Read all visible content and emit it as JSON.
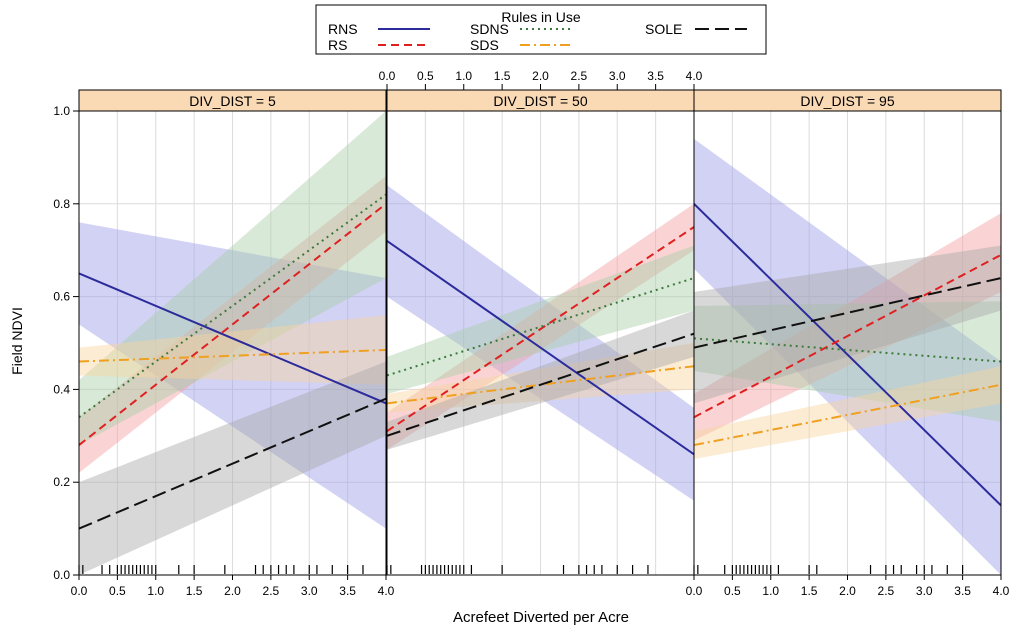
{
  "legend": {
    "title": "Rules in Use",
    "position": "top-center"
  },
  "chart_data": {
    "type": "line",
    "layout": "three panels side by side, shared y-axis, shaded confidence bands",
    "xlabel": "Acrefeet Diverted per Acre",
    "ylabel": "Field NDVI",
    "xlim": [
      0,
      4
    ],
    "ylim": [
      0,
      1
    ],
    "x_ticks": [
      "0.0",
      "0.5",
      "1.0",
      "1.5",
      "2.0",
      "2.5",
      "3.0",
      "3.5",
      "4.0"
    ],
    "y_ticks": [
      "0.0",
      "0.2",
      "0.4",
      "0.6",
      "0.8",
      "1.0"
    ],
    "grid": true,
    "strip_color": "#fad9b5",
    "series_styles": [
      {
        "name": "RNS",
        "color": "#2b2b9c",
        "dash": "solid",
        "band": "#9c9ce8"
      },
      {
        "name": "RS",
        "color": "#e02020",
        "dash": "dashed",
        "band": "#f4a0a0"
      },
      {
        "name": "SDNS",
        "color": "#3c7a3c",
        "dash": "dotted",
        "band": "#a8cfa8"
      },
      {
        "name": "SDS",
        "color": "#f0a020",
        "dash": "dashdot",
        "band": "#f8d4a0"
      },
      {
        "name": "SOLE",
        "color": "#111111",
        "dash": "longdash",
        "band": "#a8a8a8"
      }
    ],
    "panels": [
      {
        "label": "DIV_DIST = 5",
        "series": [
          {
            "name": "RNS",
            "x": [
              0,
              4
            ],
            "y": [
              0.65,
              0.37
            ],
            "lower": [
              0.54,
              0.1
            ],
            "upper": [
              0.76,
              0.64
            ]
          },
          {
            "name": "RS",
            "x": [
              0,
              4
            ],
            "y": [
              0.28,
              0.8
            ],
            "lower": [
              0.22,
              0.74
            ],
            "upper": [
              0.34,
              0.86
            ]
          },
          {
            "name": "SDNS",
            "x": [
              0,
              4
            ],
            "y": [
              0.34,
              0.82
            ],
            "lower": [
              0.28,
              0.64
            ],
            "upper": [
              0.42,
              1.0
            ]
          },
          {
            "name": "SDS",
            "x": [
              0,
              4
            ],
            "y": [
              0.46,
              0.485
            ],
            "lower": [
              0.43,
              0.41
            ],
            "upper": [
              0.49,
              0.56
            ]
          },
          {
            "name": "SOLE",
            "x": [
              0,
              4
            ],
            "y": [
              0.1,
              0.38
            ],
            "lower": [
              0.0,
              0.3
            ],
            "upper": [
              0.2,
              0.46
            ]
          }
        ],
        "rug": [
          0.0,
          0.05,
          0.3,
          0.4,
          0.5,
          0.55,
          0.6,
          0.65,
          0.7,
          0.75,
          0.8,
          0.85,
          0.9,
          0.95,
          1.0,
          1.3,
          1.5,
          1.9,
          2.3,
          2.4,
          2.5,
          2.6,
          2.7,
          2.8,
          3.0,
          3.1,
          3.3,
          3.5,
          3.7
        ]
      },
      {
        "label": "DIV_DIST = 50",
        "series": [
          {
            "name": "RNS",
            "x": [
              0,
              4
            ],
            "y": [
              0.72,
              0.26
            ],
            "lower": [
              0.6,
              0.16
            ],
            "upper": [
              0.84,
              0.36
            ]
          },
          {
            "name": "RS",
            "x": [
              0,
              4
            ],
            "y": [
              0.31,
              0.75
            ],
            "lower": [
              0.27,
              0.7
            ],
            "upper": [
              0.35,
              0.8
            ]
          },
          {
            "name": "SDNS",
            "x": [
              0,
              4
            ],
            "y": [
              0.43,
              0.64
            ],
            "lower": [
              0.39,
              0.57
            ],
            "upper": [
              0.47,
              0.71
            ]
          },
          {
            "name": "SDS",
            "x": [
              0,
              4
            ],
            "y": [
              0.37,
              0.45
            ],
            "lower": [
              0.35,
              0.4
            ],
            "upper": [
              0.39,
              0.5
            ]
          },
          {
            "name": "SOLE",
            "x": [
              0,
              4
            ],
            "y": [
              0.3,
              0.52
            ],
            "lower": [
              0.27,
              0.47
            ],
            "upper": [
              0.33,
              0.57
            ]
          }
        ],
        "rug": [
          0.0,
          0.05,
          0.45,
          0.5,
          0.55,
          0.6,
          0.65,
          0.7,
          0.75,
          0.8,
          0.85,
          0.9,
          0.95,
          1.0,
          1.1,
          1.5,
          2.3,
          2.5,
          2.6,
          2.7,
          2.8,
          3.0,
          3.2,
          3.4
        ]
      },
      {
        "label": "DIV_DIST = 95",
        "series": [
          {
            "name": "RNS",
            "x": [
              0,
              4
            ],
            "y": [
              0.8,
              0.15
            ],
            "lower": [
              0.66,
              0.0
            ],
            "upper": [
              0.94,
              0.46
            ]
          },
          {
            "name": "RS",
            "x": [
              0,
              4
            ],
            "y": [
              0.34,
              0.69
            ],
            "lower": [
              0.29,
              0.61
            ],
            "upper": [
              0.39,
              0.78
            ]
          },
          {
            "name": "SDNS",
            "x": [
              0,
              4
            ],
            "y": [
              0.51,
              0.46
            ],
            "lower": [
              0.44,
              0.33
            ],
            "upper": [
              0.58,
              0.59
            ]
          },
          {
            "name": "SDS",
            "x": [
              0,
              4
            ],
            "y": [
              0.28,
              0.41
            ],
            "lower": [
              0.25,
              0.37
            ],
            "upper": [
              0.31,
              0.45
            ]
          },
          {
            "name": "SOLE",
            "x": [
              0,
              4
            ],
            "y": [
              0.49,
              0.64
            ],
            "lower": [
              0.37,
              0.57
            ],
            "upper": [
              0.61,
              0.71
            ]
          }
        ],
        "rug": [
          0.0,
          0.05,
          0.4,
          0.5,
          0.55,
          0.6,
          0.65,
          0.7,
          0.75,
          0.8,
          0.85,
          0.9,
          0.95,
          1.0,
          1.1,
          1.5,
          1.6,
          2.3,
          2.5,
          2.6,
          2.7,
          2.9,
          3.0,
          3.1,
          3.3,
          3.5
        ]
      }
    ]
  }
}
